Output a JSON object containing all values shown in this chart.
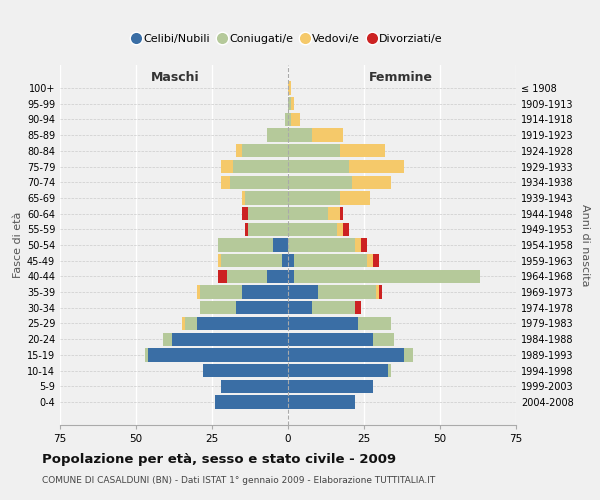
{
  "age_groups": [
    "0-4",
    "5-9",
    "10-14",
    "15-19",
    "20-24",
    "25-29",
    "30-34",
    "35-39",
    "40-44",
    "45-49",
    "50-54",
    "55-59",
    "60-64",
    "65-69",
    "70-74",
    "75-79",
    "80-84",
    "85-89",
    "90-94",
    "95-99",
    "100+"
  ],
  "birth_years": [
    "2004-2008",
    "1999-2003",
    "1994-1998",
    "1989-1993",
    "1984-1988",
    "1979-1983",
    "1974-1978",
    "1969-1973",
    "1964-1968",
    "1959-1963",
    "1954-1958",
    "1949-1953",
    "1944-1948",
    "1939-1943",
    "1934-1938",
    "1929-1933",
    "1924-1928",
    "1919-1923",
    "1914-1918",
    "1909-1913",
    "≤ 1908"
  ],
  "colors": {
    "celibi": "#3a6ea5",
    "coniugati": "#b5c99a",
    "vedovi": "#f5c96a",
    "divorziati": "#cc2222"
  },
  "male": {
    "celibi": [
      24,
      22,
      28,
      46,
      38,
      30,
      17,
      15,
      7,
      2,
      5,
      0,
      0,
      0,
      0,
      0,
      0,
      0,
      0,
      0,
      0
    ],
    "coniugati": [
      0,
      0,
      0,
      1,
      3,
      4,
      12,
      14,
      13,
      20,
      18,
      13,
      13,
      14,
      19,
      18,
      15,
      7,
      1,
      0,
      0
    ],
    "vedovi": [
      0,
      0,
      0,
      0,
      0,
      1,
      0,
      1,
      0,
      1,
      0,
      0,
      0,
      1,
      3,
      4,
      2,
      0,
      0,
      0,
      0
    ],
    "divorziati": [
      0,
      0,
      0,
      0,
      0,
      0,
      0,
      0,
      3,
      0,
      0,
      1,
      2,
      0,
      0,
      0,
      0,
      0,
      0,
      0,
      0
    ]
  },
  "female": {
    "celibi": [
      22,
      28,
      33,
      38,
      28,
      23,
      8,
      10,
      2,
      2,
      0,
      0,
      0,
      0,
      0,
      0,
      0,
      0,
      0,
      0,
      0
    ],
    "coniugati": [
      0,
      0,
      1,
      3,
      7,
      11,
      14,
      19,
      61,
      24,
      22,
      16,
      13,
      17,
      21,
      20,
      17,
      8,
      1,
      1,
      0
    ],
    "vedovi": [
      0,
      0,
      0,
      0,
      0,
      0,
      0,
      1,
      0,
      2,
      2,
      2,
      4,
      10,
      13,
      18,
      15,
      10,
      3,
      1,
      1
    ],
    "divorziati": [
      0,
      0,
      0,
      0,
      0,
      0,
      2,
      1,
      0,
      2,
      2,
      2,
      1,
      0,
      0,
      0,
      0,
      0,
      0,
      0,
      0
    ]
  },
  "title": "Popolazione per età, sesso e stato civile - 2009",
  "subtitle": "COMUNE DI CASALDUNI (BN) - Dati ISTAT 1° gennaio 2009 - Elaborazione TUTTITALIA.IT",
  "xlabel_left": "Maschi",
  "xlabel_right": "Femmine",
  "ylabel_left": "Fasce di età",
  "ylabel_right": "Anni di nascita",
  "xlim": 75,
  "background_color": "#f0f0f0",
  "legend_labels": [
    "Celibi/Nubili",
    "Coniugati/e",
    "Vedovi/e",
    "Divorziati/e"
  ]
}
